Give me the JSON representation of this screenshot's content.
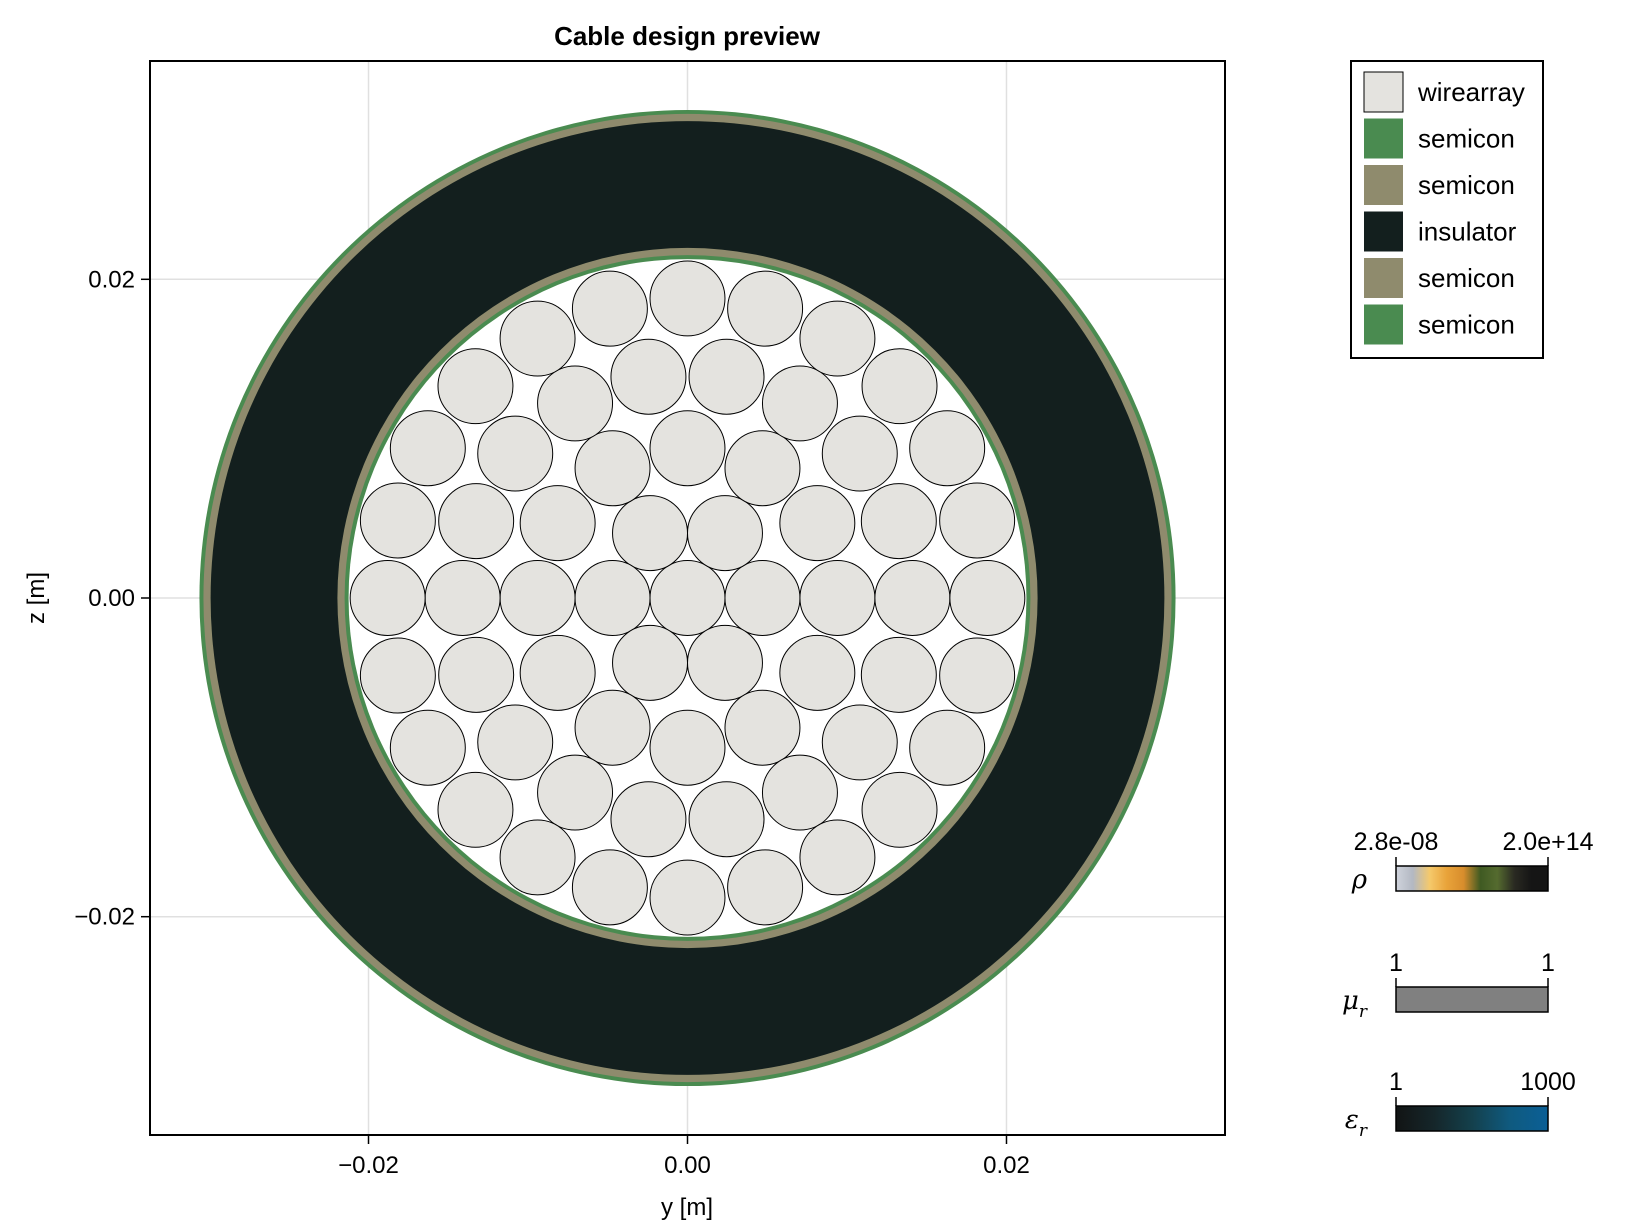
{
  "chart_data": {
    "type": "scatter",
    "title": "Cable design preview",
    "xlabel": "y [m]",
    "ylabel": "z [m]",
    "xlim": [
      -0.0337,
      0.0337
    ],
    "ylim": [
      -0.0337,
      0.0337
    ],
    "xticks": [
      -0.02,
      0.0,
      0.02
    ],
    "yticks": [
      -0.02,
      0.0,
      0.02
    ],
    "xtick_labels": [
      "−0.02",
      "0.00",
      "0.02"
    ],
    "ytick_labels": [
      "−0.02",
      "0.00",
      "0.02"
    ],
    "grid": true,
    "legend_position": "top-right outside",
    "conductor": {
      "label": "wirearray",
      "color": "#e4e3df",
      "wire_radius": 0.00235,
      "layers": [
        {
          "n": 1,
          "r": 0.0
        },
        {
          "n": 6,
          "r": 0.0047
        },
        {
          "n": 12,
          "r": 0.0094
        },
        {
          "n": 18,
          "r": 0.0141
        },
        {
          "n": 24,
          "r": 0.0188
        }
      ]
    },
    "layers": [
      {
        "label": "semicon",
        "color": "#4a8b50",
        "r_in": 0.02125,
        "r_out": 0.0215
      },
      {
        "label": "semicon",
        "color": "#8f8b6d",
        "r_in": 0.0215,
        "r_out": 0.02195
      },
      {
        "label": "insulator",
        "color": "#131f1e",
        "r_in": 0.02195,
        "r_out": 0.0299
      },
      {
        "label": "semicon",
        "color": "#8f8b6d",
        "r_in": 0.0299,
        "r_out": 0.03035
      },
      {
        "label": "semicon",
        "color": "#4a8b50",
        "r_in": 0.03035,
        "r_out": 0.0306
      }
    ],
    "legend": [
      {
        "label": "wirearray",
        "color": "#e4e3df"
      },
      {
        "label": "semicon",
        "color": "#4a8b50"
      },
      {
        "label": "semicon",
        "color": "#8f8b6d"
      },
      {
        "label": "insulator",
        "color": "#131f1e"
      },
      {
        "label": "semicon",
        "color": "#8f8b6d"
      },
      {
        "label": "semicon",
        "color": "#4a8b50"
      }
    ],
    "colorbars": [
      {
        "symbol": "ρ",
        "subscript": "",
        "min_label": "2.8e-08",
        "max_label": "2.0e+14",
        "colors": [
          "#cfd3dc",
          "#b3b8c2",
          "#f5c96b",
          "#e9a33a",
          "#d88d2c",
          "#3f5a22",
          "#556b2f",
          "#2a2a22",
          "#151515",
          "#151515"
        ]
      },
      {
        "symbol": "μ",
        "subscript": "r",
        "min_label": "1",
        "max_label": "1",
        "colors": [
          "#808080",
          "#808080"
        ]
      },
      {
        "symbol": "ε",
        "subscript": "r",
        "min_label": "1",
        "max_label": "1000",
        "colors": [
          "#121414",
          "#15262a",
          "#14404c",
          "#0f5a7f",
          "#0b5f96"
        ]
      }
    ]
  }
}
